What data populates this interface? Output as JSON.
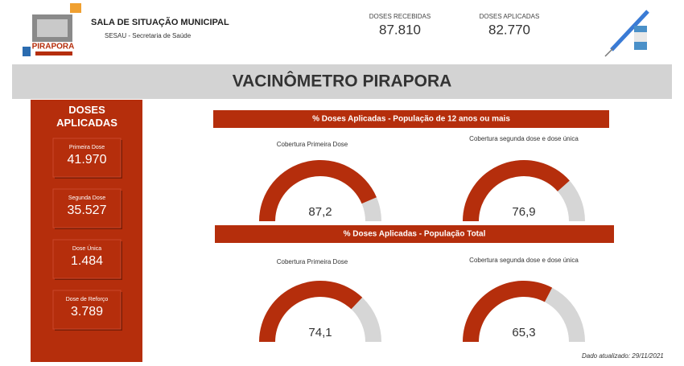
{
  "header": {
    "title": "SALA DE SITUAÇÃO MUNICIPAL",
    "subtitle": "SESAU - Secretaria de Saúde",
    "logo_text": "PIRAPORA",
    "stats": [
      {
        "label": "DOSES RECEBIDAS",
        "value": "87.810"
      },
      {
        "label": "DOSES APLICADAS",
        "value": "82.770"
      }
    ]
  },
  "banner": "VACINÔMETRO PIRAPORA",
  "sidebar": {
    "title": "DOSES APLICADAS",
    "cards": [
      {
        "label": "Primeira Dose",
        "value": "41.970"
      },
      {
        "label": "Segunda Dose",
        "value": "35.527"
      },
      {
        "label": "Dose Única",
        "value": "1.484"
      },
      {
        "label": "Dose de Reforço",
        "value": "3.789"
      }
    ]
  },
  "sections": [
    "% Doses Aplicadas - População de 12 anos ou mais",
    "% Doses Aplicadas - População Total"
  ],
  "chart_data": [
    {
      "type": "gauge",
      "title": "Cobertura Primeira Dose",
      "value": 87.2,
      "value_label": "87,2",
      "ylim": [
        0,
        100
      ],
      "color": "#b52e0c",
      "track_color": "#d6d6d6"
    },
    {
      "type": "gauge",
      "title": "Cobertura segunda dose e dose única",
      "value": 76.9,
      "value_label": "76,9",
      "ylim": [
        0,
        100
      ],
      "color": "#b52e0c",
      "track_color": "#d6d6d6"
    },
    {
      "type": "gauge",
      "title": "Cobertura Primeira Dose",
      "value": 74.1,
      "value_label": "74,1",
      "ylim": [
        0,
        100
      ],
      "color": "#b52e0c",
      "track_color": "#d6d6d6"
    },
    {
      "type": "gauge",
      "title": "Cobertura segunda dose e dose única",
      "value": 65.3,
      "value_label": "65,3",
      "ylim": [
        0,
        100
      ],
      "color": "#b52e0c",
      "track_color": "#d6d6d6"
    }
  ],
  "footer": "Dado atualizado: 29/11/2021"
}
